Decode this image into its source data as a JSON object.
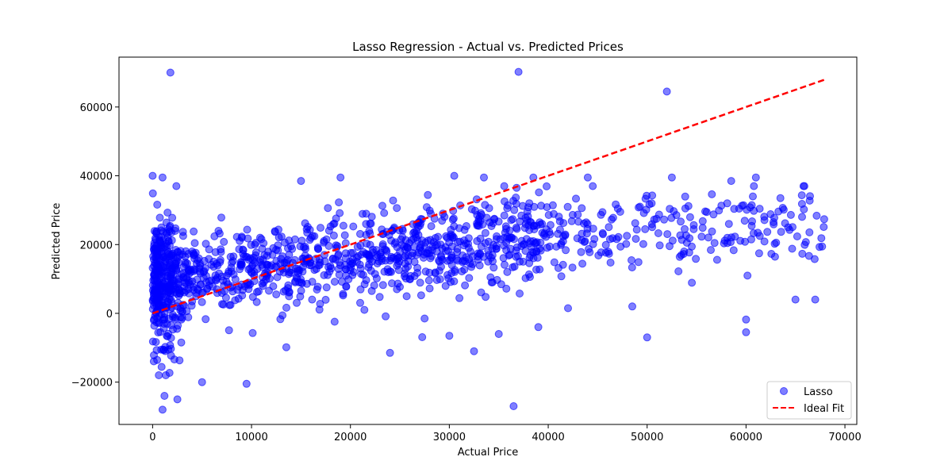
{
  "chart_data": {
    "type": "scatter",
    "title": "Lasso Regression - Actual vs. Predicted Prices",
    "xlabel": "Actual Price",
    "ylabel": "Predicted Price",
    "xlim": [
      -3400,
      71200
    ],
    "ylim": [
      -32300,
      74500
    ],
    "xticks": [
      0,
      10000,
      20000,
      30000,
      40000,
      50000,
      60000,
      70000
    ],
    "yticks": [
      -20000,
      0,
      20000,
      40000,
      60000
    ],
    "grid": false,
    "legend_position": "lower-right",
    "series": [
      {
        "name": "Lasso",
        "kind": "scatter",
        "color": "#0000ff",
        "alpha": 0.5,
        "outliers": [
          [
            1800,
            70000
          ],
          [
            37000,
            70200
          ],
          [
            52000,
            64500
          ],
          [
            0,
            40000
          ],
          [
            1000,
            39500
          ],
          [
            15000,
            38500
          ],
          [
            19000,
            39500
          ],
          [
            30500,
            40000
          ],
          [
            33500,
            39500
          ],
          [
            38500,
            39500
          ],
          [
            44000,
            39500
          ],
          [
            52500,
            39500
          ],
          [
            58500,
            38500
          ],
          [
            61000,
            39500
          ],
          [
            36500,
            -27000
          ],
          [
            1000,
            -28000
          ],
          [
            1200,
            -24000
          ],
          [
            2500,
            -25000
          ],
          [
            5000,
            -20000
          ],
          [
            9500,
            -20500
          ],
          [
            24000,
            -11500
          ],
          [
            32500,
            -11000
          ],
          [
            35000,
            -6000
          ],
          [
            39000,
            -4000
          ],
          [
            50000,
            -7000
          ],
          [
            60000,
            -5500
          ],
          [
            60000,
            -1800
          ],
          [
            48500,
            2000
          ],
          [
            65000,
            4000
          ],
          [
            67000,
            4000
          ],
          [
            30000,
            -6500
          ],
          [
            27500,
            -1500
          ],
          [
            42000,
            1500
          ]
        ]
      },
      {
        "name": "Ideal Fit",
        "kind": "line",
        "color": "#ff0000",
        "style": "dashed",
        "x": [
          0,
          68000
        ],
        "y": [
          0,
          68000
        ]
      }
    ]
  }
}
